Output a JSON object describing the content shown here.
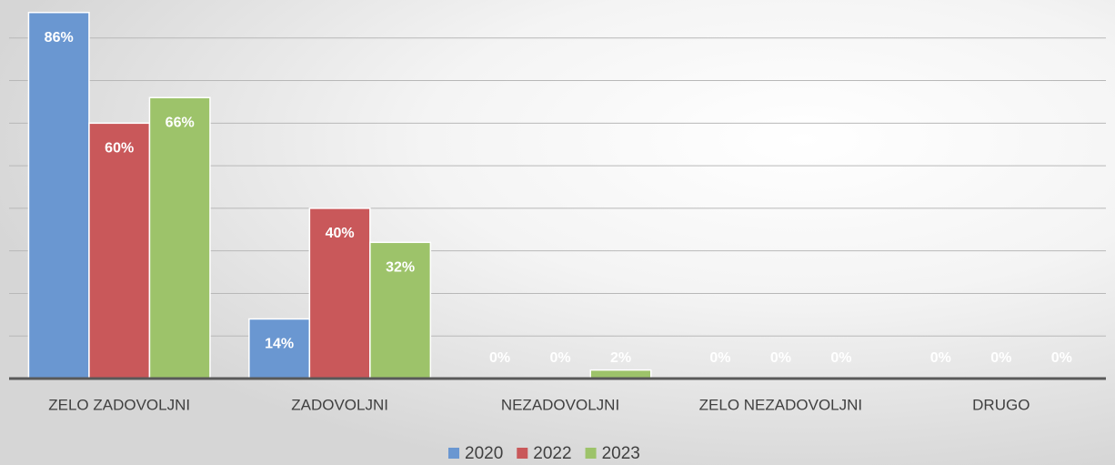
{
  "chart_data": {
    "type": "bar",
    "categories": [
      "ZELO ZADOVOLJNI",
      "ZADOVOLJNI",
      "NEZADOVOLJNI",
      "ZELO NEZADOVOLJNI",
      "DRUGO"
    ],
    "series": [
      {
        "name": "2020",
        "color": "#6a97d1",
        "values": [
          86,
          14,
          0,
          0,
          0
        ],
        "value_labels": [
          "86%",
          "14%",
          "0%",
          "0%",
          "0%"
        ]
      },
      {
        "name": "2022",
        "color": "#c9585a",
        "values": [
          60,
          40,
          0,
          0,
          0
        ],
        "value_labels": [
          "60%",
          "40%",
          "0%",
          "0%",
          "0%"
        ]
      },
      {
        "name": "2023",
        "color": "#9dc36a",
        "values": [
          66,
          32,
          2,
          0,
          0
        ],
        "value_labels": [
          "66%",
          "32%",
          "2%",
          "0%",
          "0%"
        ]
      }
    ],
    "ylim": [
      0,
      90
    ],
    "yticks": [
      0,
      10,
      20,
      30,
      40,
      50,
      60,
      70,
      80
    ],
    "grid": true,
    "legend": "bottom"
  }
}
